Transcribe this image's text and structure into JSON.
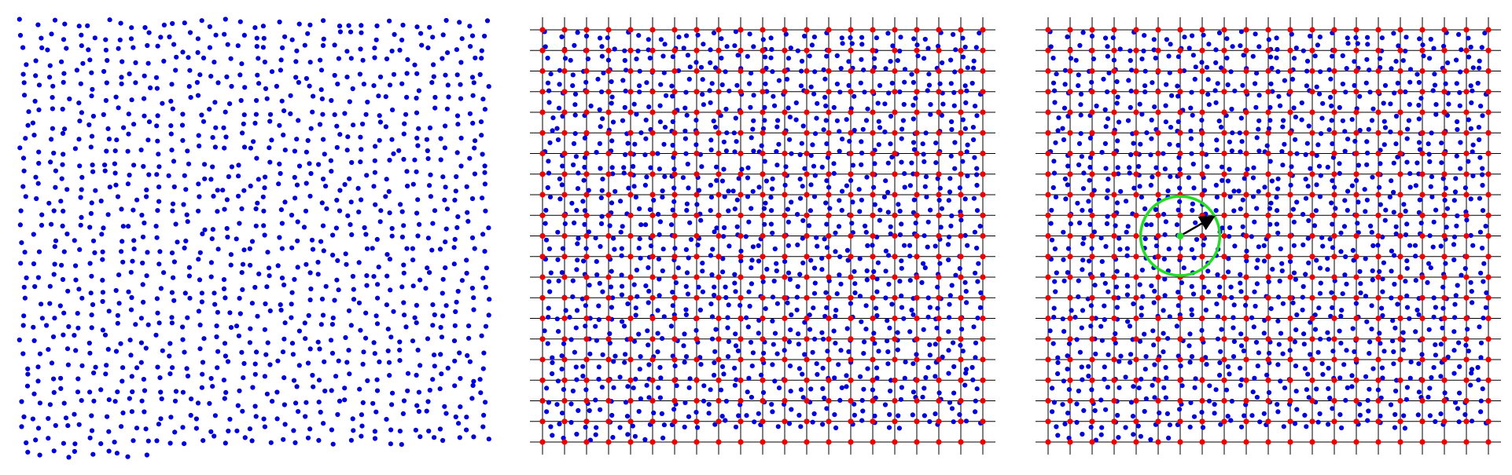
{
  "figure": {
    "panels": [
      {
        "id": "scatter",
        "description_tag": "random-points-panel"
      },
      {
        "id": "grid",
        "description_tag": "points-with-grid-panel"
      },
      {
        "id": "radius",
        "description_tag": "grid-with-search-radius-panel"
      }
    ],
    "colors": {
      "sample_point": "#0000dd",
      "grid_node": "#ee0000",
      "grid_line": "#000000",
      "search_circle": "#22dd22",
      "query_point": "#22dd22",
      "radius_arrow": "#000000"
    },
    "grid_divisions": 20,
    "sample_point_count": 1200,
    "search_radius_cells": 1.8,
    "query_cell": [
      6,
      10
    ]
  }
}
